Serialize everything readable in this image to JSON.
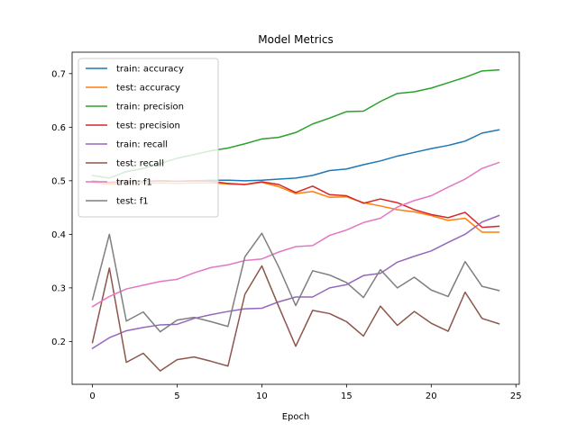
{
  "chart_data": {
    "type": "line",
    "title": "Model Metrics",
    "xlabel": "Epoch",
    "ylabel": "",
    "xlim": [
      -1.2,
      25.2
    ],
    "ylim": [
      0.12,
      0.74
    ],
    "xticks": [
      0,
      5,
      10,
      15,
      20,
      25
    ],
    "yticks": [
      0.2,
      0.3,
      0.4,
      0.5,
      0.6,
      0.7
    ],
    "grid": false,
    "legend_position": "upper-left",
    "x": [
      0,
      1,
      2,
      3,
      4,
      5,
      6,
      7,
      8,
      9,
      10,
      11,
      12,
      13,
      14,
      15,
      16,
      17,
      18,
      19,
      20,
      21,
      22,
      23,
      24
    ],
    "series": [
      {
        "name": "train: accuracy",
        "color": "#1f77b4",
        "values": [
          0.5,
          0.496,
          0.499,
          0.498,
          0.5,
          0.499,
          0.5,
          0.501,
          0.501,
          0.5,
          0.501,
          0.503,
          0.505,
          0.51,
          0.519,
          0.522,
          0.53,
          0.537,
          0.546,
          0.553,
          0.56,
          0.566,
          0.574,
          0.589,
          0.595
        ]
      },
      {
        "name": "test: accuracy",
        "color": "#ff7f0e",
        "values": [
          0.497,
          0.493,
          0.496,
          0.495,
          0.496,
          0.495,
          0.496,
          0.496,
          0.494,
          0.493,
          0.497,
          0.489,
          0.476,
          0.48,
          0.469,
          0.47,
          0.459,
          0.453,
          0.446,
          0.442,
          0.435,
          0.426,
          0.43,
          0.404,
          0.404
        ]
      },
      {
        "name": "train: precision",
        "color": "#2ca02c",
        "values": [
          0.51,
          0.505,
          0.517,
          0.523,
          0.532,
          0.542,
          0.549,
          0.556,
          0.561,
          0.569,
          0.578,
          0.581,
          0.59,
          0.606,
          0.617,
          0.629,
          0.63,
          0.648,
          0.663,
          0.666,
          0.673,
          0.683,
          0.693,
          0.705,
          0.707
        ]
      },
      {
        "name": "test: precision",
        "color": "#d62728",
        "values": [
          0.5,
          0.497,
          0.5,
          0.499,
          0.5,
          0.499,
          0.5,
          0.499,
          0.495,
          0.493,
          0.498,
          0.493,
          0.478,
          0.49,
          0.474,
          0.472,
          0.458,
          0.466,
          0.459,
          0.446,
          0.437,
          0.431,
          0.441,
          0.413,
          0.415
        ]
      },
      {
        "name": "train: recall",
        "color": "#9467bd",
        "values": [
          0.187,
          0.207,
          0.22,
          0.226,
          0.231,
          0.232,
          0.243,
          0.25,
          0.256,
          0.261,
          0.262,
          0.274,
          0.283,
          0.283,
          0.3,
          0.306,
          0.323,
          0.327,
          0.348,
          0.359,
          0.369,
          0.385,
          0.4,
          0.423,
          0.435
        ]
      },
      {
        "name": "test: recall",
        "color": "#8c564b",
        "values": [
          0.198,
          0.337,
          0.161,
          0.178,
          0.145,
          0.166,
          0.171,
          0.163,
          0.154,
          0.288,
          0.341,
          0.265,
          0.191,
          0.258,
          0.252,
          0.237,
          0.21,
          0.266,
          0.23,
          0.256,
          0.234,
          0.219,
          0.292,
          0.243,
          0.233
        ]
      },
      {
        "name": "train: f1",
        "color": "#e377c2",
        "values": [
          0.265,
          0.284,
          0.298,
          0.305,
          0.312,
          0.316,
          0.328,
          0.338,
          0.343,
          0.351,
          0.354,
          0.367,
          0.377,
          0.379,
          0.398,
          0.408,
          0.422,
          0.43,
          0.451,
          0.463,
          0.472,
          0.488,
          0.503,
          0.523,
          0.534
        ]
      },
      {
        "name": "test: f1",
        "color": "#7f7f7f",
        "values": [
          0.278,
          0.4,
          0.238,
          0.255,
          0.218,
          0.24,
          0.245,
          0.237,
          0.228,
          0.358,
          0.402,
          0.339,
          0.267,
          0.332,
          0.324,
          0.31,
          0.282,
          0.334,
          0.3,
          0.32,
          0.296,
          0.284,
          0.349,
          0.303,
          0.295
        ]
      }
    ]
  }
}
